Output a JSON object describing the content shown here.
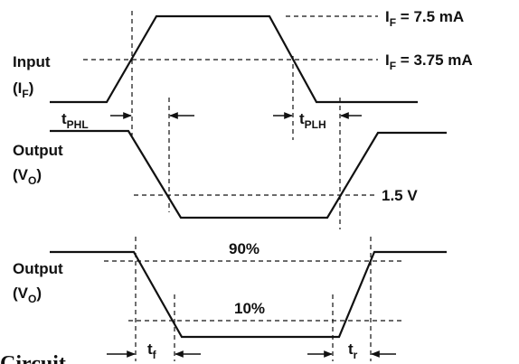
{
  "signals": {
    "input": {
      "name": "Input",
      "symbol": "I",
      "subscript": "F"
    },
    "output_1": {
      "name": "Output",
      "symbol": "(V",
      "subscript": "O",
      "close": ")"
    },
    "output_2": {
      "name": "Output",
      "symbol": "(V",
      "subscript": "O",
      "close": ")"
    }
  },
  "levels": {
    "if_high": {
      "symbol": "I",
      "subscript": "F",
      "value": " = 7.5 mA"
    },
    "if_mid": {
      "symbol": "I",
      "subscript": "F",
      "value": " = 3.75 mA"
    },
    "vo_threshold": "1.5 V",
    "pct_90": "90%",
    "pct_10": "10%"
  },
  "timings": {
    "t_phl": {
      "symbol": "t",
      "subscript": "PHL"
    },
    "t_plh": {
      "symbol": "t",
      "subscript": "PLH"
    },
    "t_f": {
      "symbol": "t",
      "subscript": "f"
    },
    "t_r": {
      "symbol": "t",
      "subscript": "r"
    }
  },
  "caption_fragment": "Circuit"
}
